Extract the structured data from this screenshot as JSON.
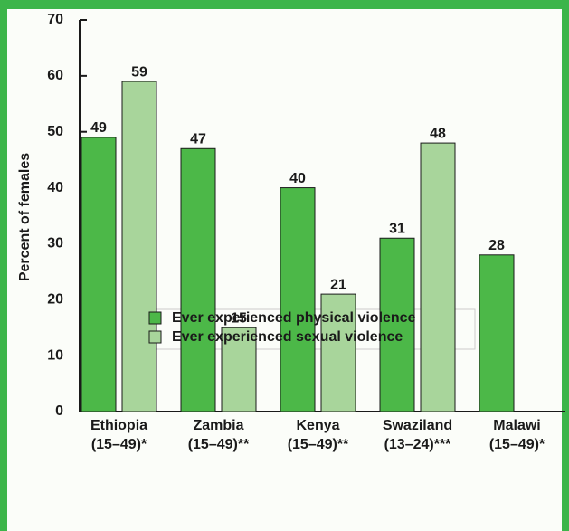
{
  "chart_data": {
    "type": "bar",
    "y_label": "Percent of females",
    "categories": [
      [
        "Ethiopia",
        "(15–49)*"
      ],
      [
        "Zambia",
        "(15–49)**"
      ],
      [
        "Kenya",
        "(15–49)**"
      ],
      [
        "Swaziland",
        "(13–24)***"
      ],
      [
        "Malawi",
        "(15–49)*"
      ]
    ],
    "series": [
      {
        "name": "Ever experienced physical violence",
        "color": "#4cb848",
        "values": [
          49,
          47,
          40,
          31,
          28
        ]
      },
      {
        "name": "Ever experienced sexual violence",
        "color": "#a8d59b",
        "values": [
          59,
          15,
          21,
          48,
          null
        ]
      }
    ],
    "ylim": [
      0,
      70
    ],
    "yticks": [
      0,
      10,
      20,
      30,
      40,
      50,
      60,
      70
    ]
  }
}
